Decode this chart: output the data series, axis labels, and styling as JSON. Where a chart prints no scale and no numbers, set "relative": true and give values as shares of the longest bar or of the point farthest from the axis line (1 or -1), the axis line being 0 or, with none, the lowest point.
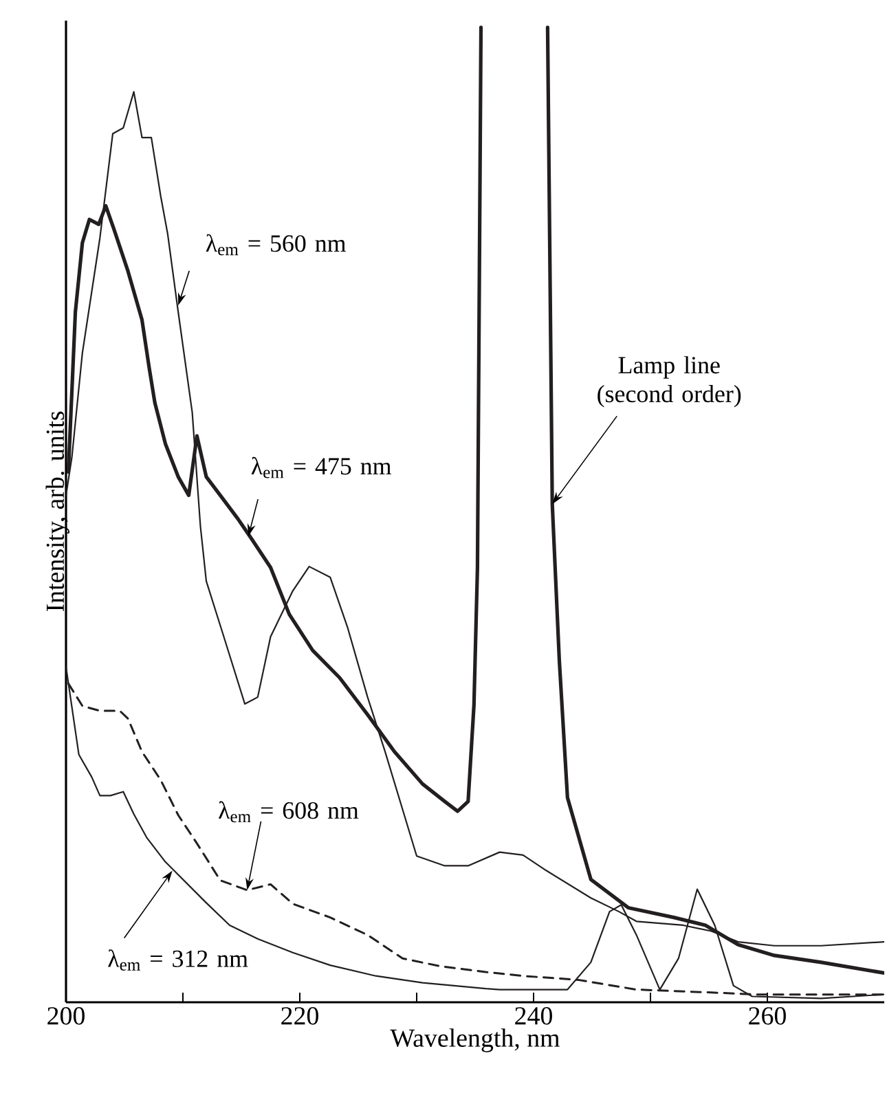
{
  "chart_data": {
    "type": "line",
    "relative": true,
    "xlabel": "Wavelength, nm",
    "ylabel": "Intensity, arb. units",
    "xlim": [
      200,
      270
    ],
    "xticks": [
      200,
      {
        "value": 210,
        "label": null
      },
      220,
      {
        "value": 230,
        "label": null
      },
      240,
      {
        "value": 250,
        "label": null
      },
      260
    ],
    "marker": "none",
    "series": [
      {
        "color": "#231f20",
        "line_style": "solid",
        "x": [
          200.0,
          200.5,
          201.4,
          202.9,
          204.0,
          204.9,
          205.8,
          206.5,
          207.3,
          208.1,
          208.7,
          209.6,
          210.8,
          211.5,
          212.0,
          213.5,
          215.3,
          216.4,
          217.5,
          219.4,
          220.8,
          222.6,
          224.1,
          225.8,
          227.3,
          230.0,
          232.4,
          234.4,
          237.1,
          239.1,
          241.1,
          244.9,
          247.3,
          248.8,
          252.8,
          255.2,
          257.5,
          260.6,
          264.6,
          270.0
        ],
        "values": [
          0.52,
          0.559,
          0.666,
          0.784,
          0.891,
          0.897,
          0.934,
          0.887,
          0.887,
          0.827,
          0.788,
          0.708,
          0.605,
          0.488,
          0.432,
          0.375,
          0.306,
          0.313,
          0.375,
          0.422,
          0.447,
          0.436,
          0.384,
          0.313,
          0.257,
          0.15,
          0.14,
          0.14,
          0.154,
          0.151,
          0.135,
          0.107,
          0.093,
          0.083,
          0.079,
          0.073,
          0.062,
          0.058,
          0.058,
          0.062
        ]
      },
      {
        "color": "#231f20",
        "line_style": "solid",
        "x": [
          200.2,
          200.8,
          201.4,
          202.0,
          202.8,
          203.4,
          204.1,
          205.3,
          206.5,
          207.1,
          207.6,
          208.5,
          209.6,
          210.5,
          211.2,
          212.0,
          213.2,
          214.7,
          215.9,
          217.5,
          219.1,
          221.1,
          223.4,
          225.8,
          228.1,
          230.5,
          232.4,
          233.5,
          234.4,
          234.9,
          235.2,
          235.5,
          238.4,
          241.2,
          241.6,
          242.2,
          242.9,
          244.9,
          248.1,
          252.0,
          254.7,
          257.5,
          260.6,
          264.6,
          270.0
        ],
        "values": [
          0.544,
          0.708,
          0.779,
          0.803,
          0.798,
          0.817,
          0.793,
          0.75,
          0.7,
          0.652,
          0.615,
          0.573,
          0.539,
          0.52,
          0.581,
          0.539,
          0.52,
          0.496,
          0.475,
          0.446,
          0.398,
          0.361,
          0.333,
          0.295,
          0.257,
          0.224,
          0.206,
          0.196,
          0.206,
          0.305,
          0.446,
          1.0,
          null,
          1.0,
          0.511,
          0.351,
          0.21,
          0.126,
          0.097,
          0.087,
          0.079,
          0.059,
          0.048,
          0.041,
          0.03
        ]
      },
      {
        "color": "#231f20",
        "line_style": "dashed",
        "x": [
          200.2,
          201.4,
          202.9,
          204.6,
          205.3,
          206.5,
          208.1,
          209.6,
          211.2,
          213.2,
          215.5,
          217.5,
          219.4,
          222.6,
          225.8,
          228.8,
          232.0,
          235.9,
          239.1,
          243.8,
          248.8,
          255.2,
          259.1,
          270.0
        ],
        "values": [
          0.327,
          0.304,
          0.299,
          0.299,
          0.291,
          0.257,
          0.228,
          0.192,
          0.163,
          0.125,
          0.115,
          0.121,
          0.101,
          0.087,
          0.069,
          0.045,
          0.037,
          0.031,
          0.027,
          0.023,
          0.013,
          0.01,
          0.008,
          0.008
        ]
      },
      {
        "color": "#231f20",
        "line_style": "solid",
        "x": [
          200.0,
          201.1,
          202.2,
          202.9,
          203.8,
          204.9,
          205.8,
          206.9,
          208.5,
          210.0,
          212.0,
          214.0,
          216.4,
          219.4,
          222.6,
          226.5,
          230.5,
          235.9,
          237.1,
          242.9,
          244.9,
          246.5,
          247.5,
          248.8,
          250.8,
          252.4,
          254.0,
          255.5,
          257.1,
          258.7,
          264.6,
          270.0
        ],
        "values": [
          0.344,
          0.254,
          0.231,
          0.212,
          0.212,
          0.216,
          0.193,
          0.169,
          0.144,
          0.126,
          0.102,
          0.079,
          0.065,
          0.051,
          0.038,
          0.027,
          0.02,
          0.014,
          0.013,
          0.013,
          0.041,
          0.093,
          0.1,
          0.069,
          0.013,
          0.045,
          0.116,
          0.079,
          0.017,
          0.006,
          0.004,
          0.008
        ]
      }
    ],
    "annotations": [
      {
        "text": "λ$_{em}$ = 560 nm",
        "x": 209.6,
        "y": 0.715
      },
      {
        "text": "λ$_{em}$ = 475 nm",
        "x": 215.6,
        "y": 0.478
      },
      {
        "text": "λ$_{em}$ = 608 nm",
        "x": 215.5,
        "y": 0.115
      },
      {
        "text": "λ$_{em}$ = 312 nm",
        "x": 209.1,
        "y": 0.135
      },
      {
        "text": "Lamp line (second order)",
        "x": 241.6,
        "y": 0.511
      }
    ]
  }
}
